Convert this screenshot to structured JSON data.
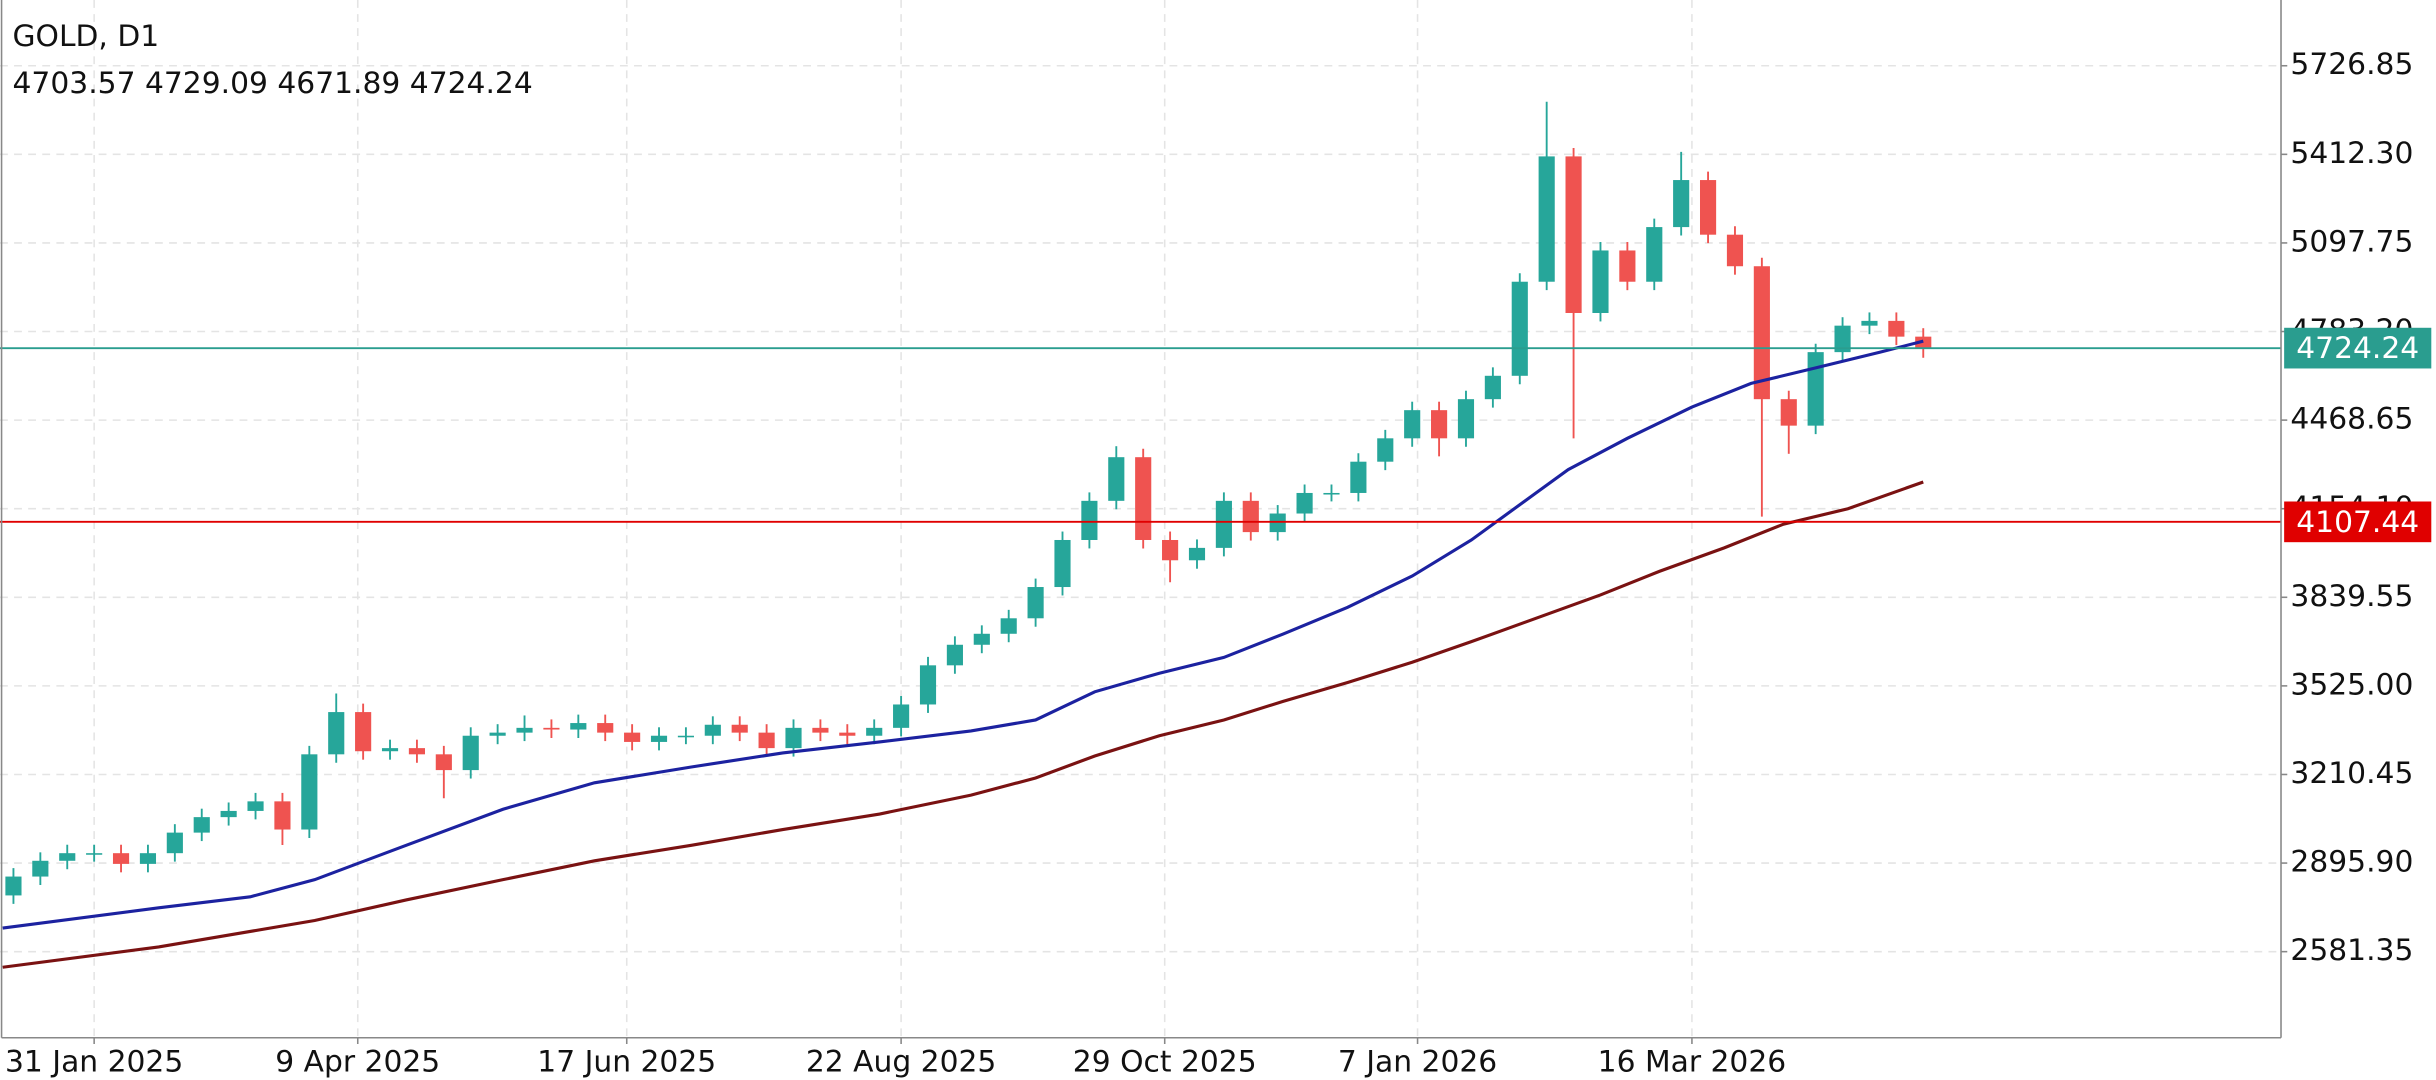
{
  "chart_data": {
    "type": "candlestick",
    "title": "GOLD, D1",
    "subtitle": "4703.57 4729.09 4671.89 4724.24",
    "up_color": "#26a69a",
    "down_color": "#ef5350",
    "xlim": [
      -0.5,
      423.5
    ],
    "xticks": [
      {
        "value": 17,
        "label": "31 Jan 2025"
      },
      {
        "value": 66,
        "label": "9 Apr 2025"
      },
      {
        "value": 116,
        "label": "17 Jun 2025"
      },
      {
        "value": 167,
        "label": "22 Aug 2025"
      },
      {
        "value": 216,
        "label": "29 Oct 2025"
      },
      {
        "value": 263,
        "label": "7 Jan 2026"
      },
      {
        "value": 314,
        "label": "16 Mar 2026"
      }
    ],
    "ylim": [
      2275.7,
      5960.3
    ],
    "yticks": [
      2581.35,
      {
        "value": 2895.9,
        "label": "2895.90"
      },
      3210.45,
      {
        "value": 3525,
        "label": "3525.00"
      },
      3839.55,
      {
        "value": 4154.1,
        "label": "4154.10"
      },
      4468.65,
      {
        "value": 4783.2,
        "label": "4783.20"
      },
      5097.75,
      {
        "value": 5412.3,
        "label": "5412.30"
      },
      5726.85
    ],
    "grid": true,
    "candles": {
      "x": [
        2,
        7,
        12,
        17,
        22,
        27,
        32,
        37,
        42,
        47,
        52,
        57,
        62,
        67,
        72,
        77,
        82,
        87,
        92,
        97,
        102,
        107,
        112,
        117,
        122,
        127,
        132,
        137,
        142,
        147,
        152,
        157,
        162,
        167,
        172,
        177,
        182,
        187,
        192,
        197,
        202,
        207,
        212,
        217,
        222,
        227,
        232,
        237,
        242,
        247,
        252,
        257,
        262,
        267,
        272,
        277,
        282,
        287,
        292,
        297,
        302,
        307,
        312,
        317,
        322,
        327,
        332,
        337,
        342,
        347,
        352,
        357
      ],
      "open": [
        2781,
        2848,
        2904,
        2931,
        2931,
        2893,
        2931,
        3004,
        3059,
        3081,
        3115,
        3015,
        3282,
        3432,
        3293,
        3304,
        3282,
        3226,
        3348,
        3359,
        3376,
        3370,
        3393,
        3359,
        3326,
        3348,
        3348,
        3387,
        3359,
        3304,
        3376,
        3359,
        3348,
        3376,
        3459,
        3598,
        3671,
        3710,
        3765,
        3876,
        4043,
        4182,
        4337,
        4043,
        3971,
        4015,
        4182,
        4071,
        4137,
        4210,
        4210,
        4321,
        4404,
        4504,
        4404,
        4543,
        4626,
        4960,
        5405,
        4849,
        5071,
        4960,
        5154,
        5321,
        5127,
        5015,
        4543,
        4449,
        4710,
        4804,
        4821,
        4765
      ],
      "high": [
        2878,
        2934,
        2961,
        2961,
        2961,
        2961,
        3034,
        3089,
        3111,
        3145,
        3145,
        3312,
        3498,
        3462,
        3334,
        3334,
        3312,
        3378,
        3389,
        3420,
        3406,
        3423,
        3423,
        3389,
        3378,
        3378,
        3417,
        3417,
        3389,
        3406,
        3406,
        3389,
        3406,
        3489,
        3628,
        3701,
        3740,
        3795,
        3906,
        4073,
        4212,
        4376,
        4367,
        4073,
        4045,
        4212,
        4212,
        4167,
        4240,
        4240,
        4351,
        4434,
        4534,
        4534,
        4573,
        4656,
        4990,
        5599,
        5435,
        5101,
        5101,
        5184,
        5421,
        5351,
        5157,
        5045,
        4573,
        4740,
        4834,
        4851,
        4851,
        4795
      ],
      "low": [
        2751,
        2818,
        2874,
        2901,
        2863,
        2863,
        2901,
        2974,
        3029,
        3051,
        2960,
        2985,
        3252,
        3263,
        3263,
        3252,
        3126,
        3196,
        3318,
        3329,
        3340,
        3340,
        3329,
        3296,
        3296,
        3318,
        3318,
        3329,
        3274,
        3274,
        3329,
        3318,
        3318,
        3346,
        3429,
        3568,
        3641,
        3680,
        3735,
        3846,
        4013,
        4152,
        4013,
        3893,
        3941,
        3985,
        4041,
        4041,
        4107,
        4180,
        4180,
        4291,
        4374,
        4340,
        4374,
        4513,
        4596,
        4930,
        4404,
        4819,
        4930,
        4930,
        5124,
        5097,
        4985,
        4126,
        4349,
        4419,
        4680,
        4774,
        4735,
        4690
      ],
      "close": [
        2848,
        2904,
        2931,
        2931,
        2893,
        2931,
        3004,
        3059,
        3081,
        3115,
        3015,
        3282,
        3432,
        3293,
        3304,
        3282,
        3226,
        3348,
        3359,
        3376,
        3370,
        3393,
        3359,
        3326,
        3348,
        3348,
        3387,
        3359,
        3304,
        3376,
        3359,
        3348,
        3376,
        3459,
        3598,
        3671,
        3710,
        3765,
        3876,
        4043,
        4182,
        4337,
        4043,
        3971,
        4015,
        4182,
        4071,
        4137,
        4210,
        4210,
        4321,
        4404,
        4504,
        4404,
        4543,
        4626,
        4960,
        5405,
        4849,
        5071,
        4960,
        5154,
        5321,
        5127,
        5015,
        4543,
        4449,
        4710,
        4804,
        4821,
        4765,
        4724.24
      ]
    },
    "lines": [
      {
        "color": "#1c22a0",
        "x": [
          0,
          29,
          46,
          58,
          75,
          93,
          110,
          128,
          145,
          163,
          180,
          192,
          203,
          215,
          227,
          238,
          250,
          262,
          273,
          285,
          291,
          302,
          314,
          325,
          337,
          349,
          357
        ],
        "values": [
          2665,
          2737,
          2776,
          2837,
          2959,
          3087,
          3181,
          3237,
          3287,
          3326,
          3365,
          3404,
          3504,
          3570,
          3626,
          3709,
          3804,
          3915,
          4043,
          4210,
          4293,
          4404,
          4515,
          4599,
          4654,
          4710,
          4749
        ]
      },
      {
        "color": "#7a1212",
        "x": [
          0,
          29,
          58,
          75,
          93,
          110,
          128,
          145,
          163,
          180,
          192,
          203,
          215,
          227,
          238,
          250,
          262,
          273,
          285,
          297,
          308,
          320,
          331,
          343,
          357
        ],
        "values": [
          2526,
          2598,
          2692,
          2765,
          2837,
          2904,
          2959,
          3015,
          3070,
          3137,
          3198,
          3276,
          3348,
          3404,
          3470,
          3537,
          3609,
          3682,
          3765,
          3848,
          3932,
          4015,
          4099,
          4154,
          4249
        ]
      }
    ],
    "price_lines": [
      {
        "value": 4724.24,
        "color": "#2a9d8f"
      },
      {
        "value": 4107.44,
        "color": "#e00000"
      }
    ]
  }
}
